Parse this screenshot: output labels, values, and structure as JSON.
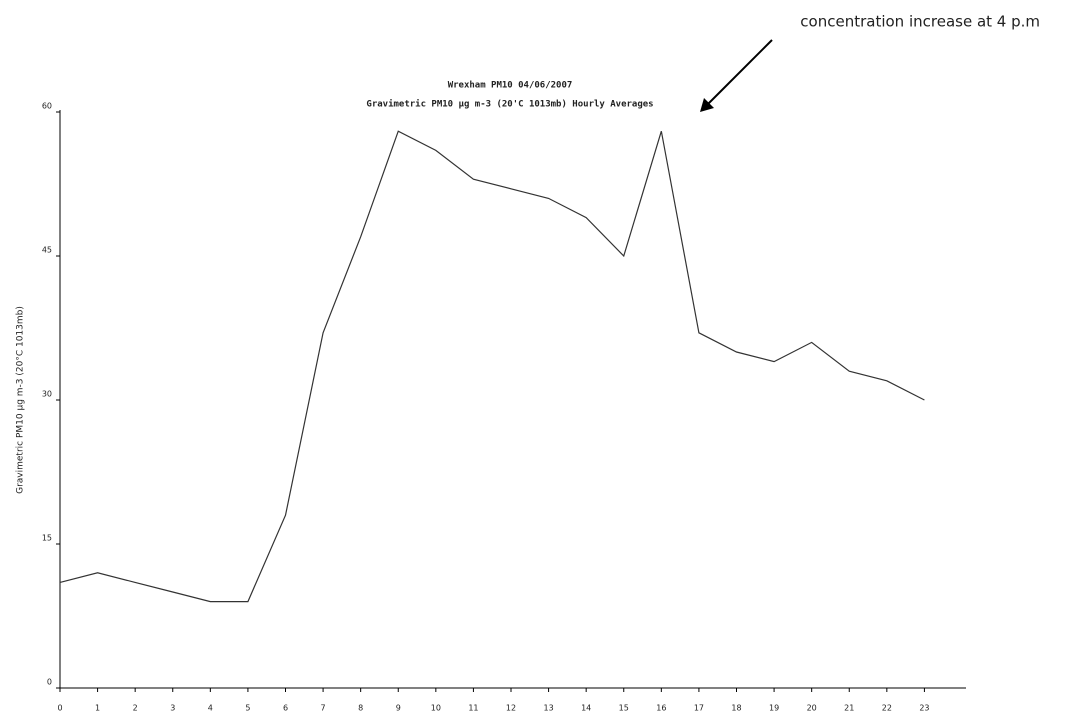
{
  "chart_data": {
    "type": "line",
    "title": "Wrexham PM10 04/06/2007",
    "subtitle": "Gravimetric PM10 µg m-3 (20'C 1013mb) Hourly Averages",
    "y_label": "Gravimetric PM10 µg m-3 (20°C 1013mb)",
    "annotation": "concentration increase at 4 p.m",
    "x": [
      0,
      1,
      2,
      3,
      4,
      5,
      6,
      7,
      8,
      9,
      10,
      11,
      12,
      13,
      14,
      15,
      16,
      17,
      18,
      19,
      20,
      21,
      22,
      23
    ],
    "values": [
      11,
      12,
      11,
      10,
      9,
      9,
      18,
      37,
      47,
      58,
      56,
      53,
      52,
      51,
      49,
      45,
      58,
      37,
      35,
      34,
      36,
      33,
      32,
      30
    ],
    "color": "#333333",
    "xlim": [
      0,
      24
    ],
    "xticks": [
      0,
      1,
      2,
      3,
      4,
      5,
      6,
      7,
      8,
      9,
      10,
      11,
      12,
      13,
      14,
      15,
      16,
      17,
      18,
      19,
      20,
      21,
      22,
      23
    ],
    "ylim": [
      0,
      60
    ],
    "yticks": [
      0,
      15,
      30,
      45,
      60
    ],
    "grid": false
  }
}
